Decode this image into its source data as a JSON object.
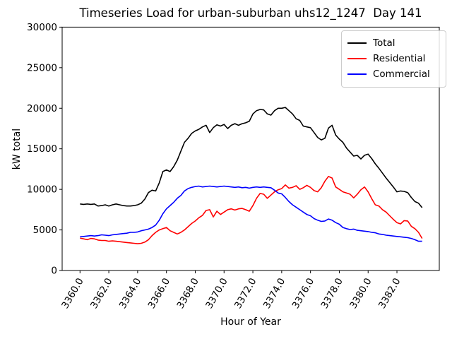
{
  "chart_data": {
    "type": "line",
    "title": "Timeseries Load for urban-suburban uhs12_1247  Day 141",
    "xlabel": "Hour of Year",
    "ylabel": "kW total",
    "xlim": [
      3358.76,
      3384.94
    ],
    "ylim": [
      0,
      30000
    ],
    "grid": false,
    "legend_position": "top-right",
    "xtick_values": [
      3360,
      3362,
      3364,
      3366,
      3368,
      3370,
      3372,
      3374,
      3376,
      3378,
      3380,
      3382
    ],
    "xtick_labels": [
      "3360.0",
      "3362.0",
      "3364.0",
      "3366.0",
      "3368.0",
      "3370.0",
      "3372.0",
      "3374.0",
      "3376.0",
      "3378.0",
      "3380.0",
      "3382.0"
    ],
    "ytick_values": [
      0,
      5000,
      10000,
      15000,
      20000,
      25000,
      30000
    ],
    "ytick_labels": [
      "0",
      "5000",
      "10000",
      "15000",
      "20000",
      "25000",
      "30000"
    ],
    "x_start": 3360,
    "x_step": 0.25,
    "series": [
      {
        "name": "Total",
        "color": "#000000",
        "values": [
          8200,
          8150,
          8200,
          8150,
          8200,
          7950,
          8000,
          8100,
          7950,
          8100,
          8200,
          8100,
          8000,
          7950,
          7950,
          8000,
          8100,
          8300,
          8800,
          9600,
          9900,
          9800,
          10800,
          12200,
          12400,
          12200,
          12800,
          13600,
          14700,
          15800,
          16300,
          16900,
          17200,
          17400,
          17700,
          17900,
          17000,
          17600,
          17950,
          17800,
          18000,
          17500,
          17900,
          18100,
          17900,
          18100,
          18200,
          18400,
          19300,
          19700,
          19850,
          19800,
          19300,
          19150,
          19700,
          20000,
          20000,
          20100,
          19700,
          19300,
          18700,
          18500,
          17800,
          17700,
          17600,
          17000,
          16400,
          16100,
          16300,
          17550,
          17900,
          16700,
          16200,
          15800,
          15100,
          14600,
          14100,
          14200,
          13750,
          14200,
          14350,
          13800,
          13150,
          12600,
          12000,
          11400,
          10850,
          10300,
          9700,
          9800,
          9750,
          9600,
          9000,
          8500,
          8300,
          7750
        ]
      },
      {
        "name": "Residential",
        "color": "#ff0000",
        "values": [
          4000,
          3900,
          3800,
          3950,
          3900,
          3750,
          3700,
          3700,
          3600,
          3650,
          3600,
          3550,
          3500,
          3450,
          3400,
          3350,
          3300,
          3350,
          3500,
          3800,
          4300,
          4700,
          5000,
          5150,
          5300,
          4900,
          4700,
          4500,
          4700,
          5000,
          5400,
          5800,
          6100,
          6500,
          6800,
          7400,
          7500,
          6600,
          7300,
          6900,
          7200,
          7500,
          7600,
          7450,
          7600,
          7650,
          7500,
          7300,
          8000,
          8900,
          9500,
          9400,
          8900,
          9300,
          9700,
          9950,
          10100,
          10550,
          10150,
          10250,
          10450,
          10000,
          10200,
          10500,
          10250,
          9850,
          9700,
          10200,
          11000,
          11600,
          11400,
          10300,
          10000,
          9700,
          9550,
          9400,
          8950,
          9400,
          9950,
          10300,
          9700,
          8850,
          8100,
          7950,
          7500,
          7200,
          6750,
          6300,
          5900,
          5750,
          6150,
          6100,
          5450,
          5150,
          4700,
          3950
        ]
      },
      {
        "name": "Commercial",
        "color": "#0000ff",
        "values": [
          4150,
          4200,
          4250,
          4300,
          4250,
          4300,
          4400,
          4350,
          4300,
          4400,
          4450,
          4500,
          4550,
          4600,
          4700,
          4700,
          4750,
          4900,
          5000,
          5100,
          5300,
          5600,
          6200,
          7000,
          7600,
          8000,
          8400,
          8900,
          9250,
          9800,
          10100,
          10250,
          10350,
          10400,
          10300,
          10350,
          10400,
          10350,
          10300,
          10350,
          10400,
          10350,
          10300,
          10250,
          10300,
          10200,
          10250,
          10150,
          10250,
          10300,
          10250,
          10300,
          10250,
          10200,
          9900,
          9550,
          9450,
          9000,
          8500,
          8100,
          7800,
          7500,
          7200,
          6900,
          6750,
          6400,
          6200,
          6050,
          6100,
          6350,
          6200,
          5900,
          5700,
          5300,
          5150,
          5050,
          5100,
          4950,
          4900,
          4850,
          4800,
          4700,
          4650,
          4500,
          4450,
          4350,
          4300,
          4250,
          4200,
          4150,
          4100,
          4050,
          3950,
          3800,
          3600,
          3600
        ]
      }
    ]
  }
}
